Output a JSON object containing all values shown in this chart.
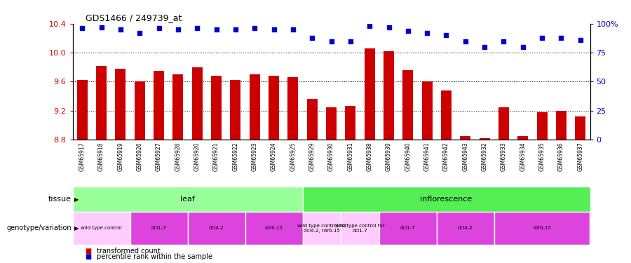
{
  "title": "GDS1466 / 249739_at",
  "samples": [
    "GSM65917",
    "GSM65918",
    "GSM65919",
    "GSM65926",
    "GSM65927",
    "GSM65928",
    "GSM65920",
    "GSM65921",
    "GSM65922",
    "GSM65923",
    "GSM65924",
    "GSM65925",
    "GSM65929",
    "GSM65930",
    "GSM65931",
    "GSM65938",
    "GSM65939",
    "GSM65940",
    "GSM65941",
    "GSM65942",
    "GSM65943",
    "GSM65932",
    "GSM65933",
    "GSM65934",
    "GSM65935",
    "GSM65936",
    "GSM65937"
  ],
  "transformed_count": [
    9.62,
    9.82,
    9.78,
    9.6,
    9.75,
    9.7,
    9.8,
    9.68,
    9.62,
    9.7,
    9.68,
    9.66,
    9.36,
    9.24,
    9.26,
    10.06,
    10.02,
    9.76,
    9.6,
    9.48,
    8.85,
    8.82,
    9.24,
    8.85,
    9.18,
    9.2,
    9.12
  ],
  "percentile_rank": [
    96,
    97,
    95,
    92,
    96,
    95,
    96,
    95,
    95,
    96,
    95,
    95,
    88,
    85,
    85,
    98,
    97,
    94,
    92,
    90,
    85,
    80,
    85,
    80,
    88,
    88,
    86
  ],
  "ylim": [
    8.8,
    10.4
  ],
  "yticks": [
    8.8,
    9.2,
    9.6,
    10.0,
    10.4
  ],
  "right_yticks": [
    0,
    25,
    50,
    75,
    100
  ],
  "bar_color": "#cc0000",
  "dot_color": "#0000cc",
  "tissue_groups": [
    {
      "label": "leaf",
      "start": 0,
      "end": 11,
      "color": "#99ff99"
    },
    {
      "label": "inflorescence",
      "start": 12,
      "end": 26,
      "color": "#55ee55"
    }
  ],
  "genotype_groups": [
    {
      "label": "wild type control",
      "start": 0,
      "end": 2,
      "color": "#ffccff"
    },
    {
      "label": "dcl1-7",
      "start": 3,
      "end": 5,
      "color": "#dd44dd"
    },
    {
      "label": "dcl4-2",
      "start": 6,
      "end": 8,
      "color": "#dd44dd"
    },
    {
      "label": "rdr6-15",
      "start": 9,
      "end": 11,
      "color": "#dd44dd"
    },
    {
      "label": "wild type control for\ndcl4-2, rdr6-15",
      "start": 12,
      "end": 13,
      "color": "#ffccff"
    },
    {
      "label": "wild type control for\ndcl1-7",
      "start": 14,
      "end": 15,
      "color": "#ffccff"
    },
    {
      "label": "dcl1-7",
      "start": 16,
      "end": 18,
      "color": "#dd44dd"
    },
    {
      "label": "dcl4-2",
      "start": 19,
      "end": 21,
      "color": "#dd44dd"
    },
    {
      "label": "rdr6-15",
      "start": 22,
      "end": 26,
      "color": "#dd44dd"
    }
  ],
  "tick_label_area_color": "#cccccc",
  "bar_color_hex": "#cc0000",
  "dot_color_hex": "#0000cc",
  "left_axis_color": "#cc0000",
  "right_axis_color": "#0000cc"
}
